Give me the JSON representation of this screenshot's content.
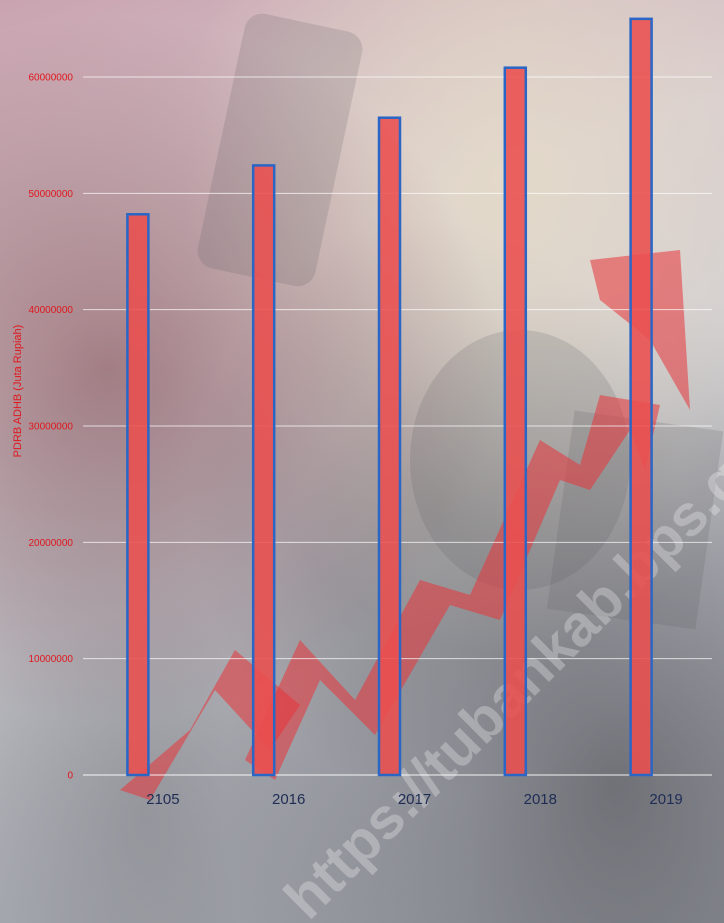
{
  "chart_data": {
    "type": "bar",
    "categories": [
      "2105",
      "2016",
      "2017",
      "2018",
      "2019"
    ],
    "values": [
      48200000,
      52400000,
      56500000,
      60800000,
      65000000
    ],
    "title": "",
    "xlabel": "",
    "ylabel": "PDRB ADHB (Juta Rupiah)",
    "ylim": [
      0,
      65000000
    ],
    "yticks": [
      0,
      10000000,
      20000000,
      30000000,
      40000000,
      50000000,
      60000000
    ],
    "ytick_labels": [
      "0",
      "10000000",
      "20000000",
      "30000000",
      "40000000",
      "50000000",
      "60000000"
    ],
    "grid": true,
    "legend": "none",
    "colors": {
      "bar_fill": "#ea4f4f",
      "bar_edge": "#2a66c6",
      "axis_text": "#e0171d",
      "category_text": "#1f2d55"
    }
  },
  "watermark": "https://tubankab.bps.go.id"
}
